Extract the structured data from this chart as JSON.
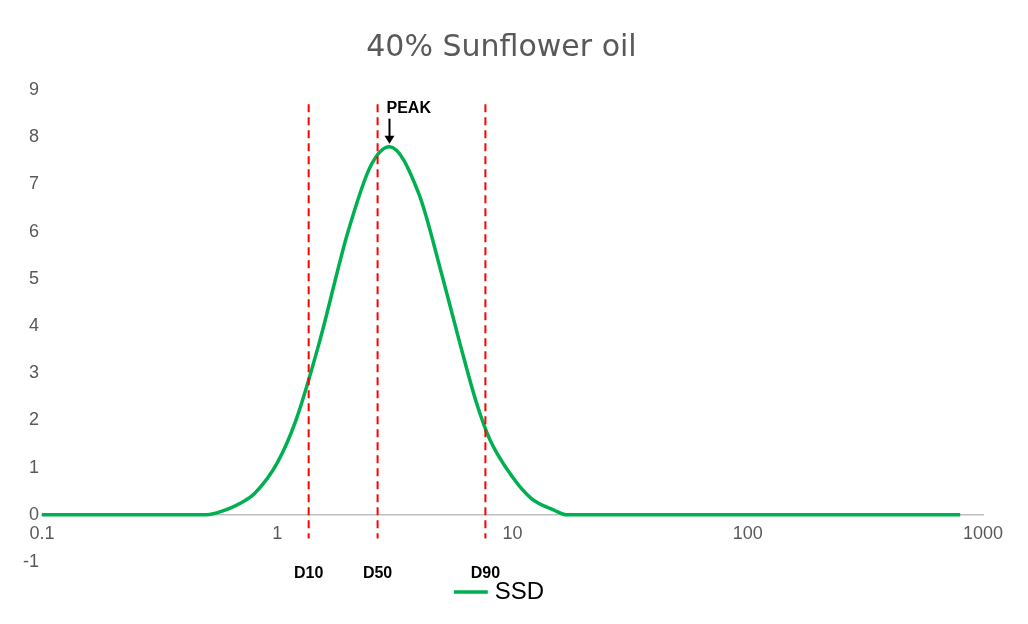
{
  "chart_data": {
    "type": "line",
    "title": "40% Sunflower oil",
    "x": [
      0.1,
      0.3,
      0.5,
      0.6,
      0.7,
      0.8,
      1,
      1.2,
      1.5,
      2,
      2.5,
      3,
      4,
      5,
      6,
      7,
      8,
      10,
      12,
      15,
      17,
      100,
      800
    ],
    "series": [
      {
        "name": "SSD",
        "color": "#00b050",
        "values": [
          0,
          0,
          0,
          0.1,
          0.25,
          0.45,
          1.1,
          2.0,
          3.6,
          6.0,
          7.4,
          7.8,
          6.8,
          5.1,
          3.6,
          2.4,
          1.6,
          0.8,
          0.35,
          0.1,
          0,
          0,
          0
        ]
      }
    ],
    "log": "x",
    "xlim": [
      0.1,
      1000
    ],
    "xticks": [
      0.1,
      1,
      10,
      100,
      1000
    ],
    "ylim": [
      -1,
      9
    ],
    "yticks": [
      -1,
      0,
      1,
      2,
      3,
      4,
      5,
      6,
      7,
      8,
      9
    ],
    "ref_lines": [
      {
        "axis": "x",
        "value": 1.36,
        "label": "D10",
        "color": "#ff0000",
        "line_style": "dashed"
      },
      {
        "axis": "x",
        "value": 2.67,
        "label": "D50",
        "color": "#ff0000",
        "line_style": "dashed"
      },
      {
        "axis": "x",
        "value": 7.67,
        "label": "D90",
        "color": "#ff0000",
        "line_style": "dashed"
      }
    ],
    "annotations": [
      {
        "text": "PEAK",
        "x": 3,
        "y": 7.8
      }
    ],
    "grid": false,
    "legend": "bottom",
    "marker": "none",
    "line_style": "solid"
  }
}
